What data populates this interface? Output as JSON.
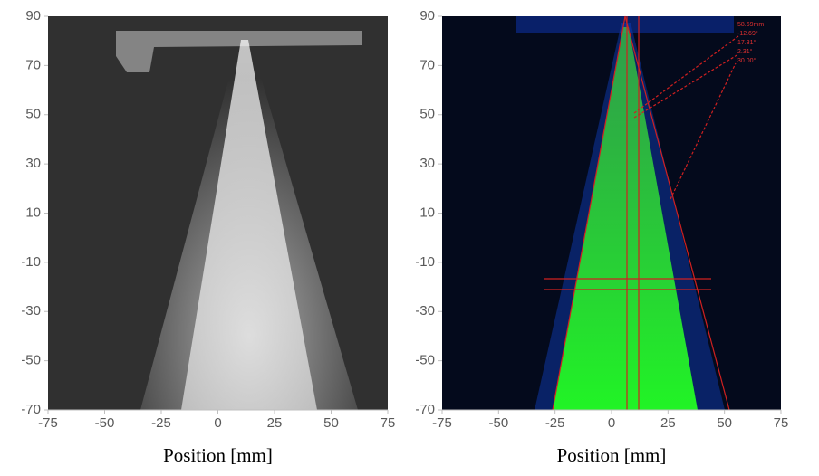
{
  "chart_data": [
    {
      "type": "image",
      "xlabel": "Position [mm]",
      "xlim": [
        -75,
        75
      ],
      "ylim": [
        -70,
        90
      ],
      "xticks": [
        -75,
        -50,
        -25,
        0,
        25,
        50,
        75
      ],
      "yticks": [
        90,
        70,
        50,
        30,
        10,
        -10,
        -30,
        -50,
        -70
      ]
    },
    {
      "type": "image",
      "xlabel": "Position [mm]",
      "xlim": [
        -75,
        75
      ],
      "ylim": [
        -70,
        90
      ],
      "xticks": [
        -75,
        -50,
        -25,
        0,
        25,
        50,
        75
      ],
      "yticks": [
        90,
        70,
        50,
        30,
        10,
        -10,
        -30,
        -50,
        -70
      ],
      "annotations": [
        "58.69mm",
        "-12.69°",
        "17.31°",
        "2.31°",
        "30.00°"
      ]
    }
  ]
}
